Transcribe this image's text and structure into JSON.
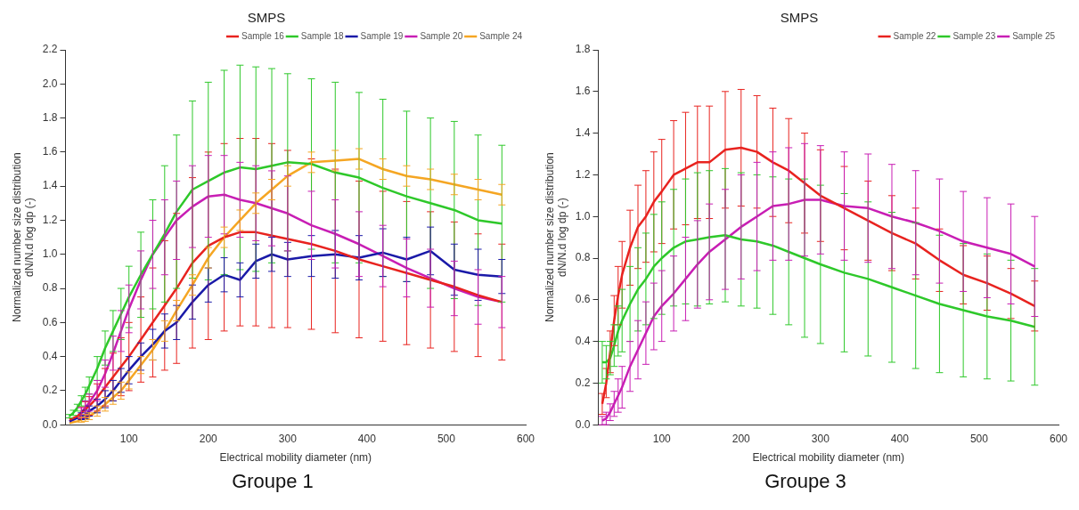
{
  "chart_data": [
    {
      "type": "line",
      "title": "SMPS",
      "xlabel": "Electrical mobility diameter (nm)",
      "ylabel": "Normalized number size distribution\ndN/N.d log dp (-)",
      "annotations": [
        "Groupe 1"
      ],
      "legend": "top right",
      "marker": "none",
      "line_style": "solid",
      "grid": false,
      "x": [
        25,
        30,
        35,
        40,
        45,
        50,
        60,
        70,
        80,
        90,
        100,
        115,
        130,
        145,
        160,
        180,
        200,
        220,
        240,
        260,
        280,
        300,
        330,
        360,
        390,
        420,
        450,
        480,
        510,
        540,
        570
      ],
      "xlim": [
        20,
        600
      ],
      "xticks": [
        100,
        200,
        300,
        400,
        500,
        600
      ],
      "ylim": [
        0,
        2.2
      ],
      "yticks": [
        {
          "value": 0,
          "label": "0.0"
        },
        0.2,
        0.4,
        0.6,
        0.8,
        {
          "value": 1,
          "label": "1.0"
        },
        1.2,
        1.4,
        1.6,
        1.8,
        {
          "value": 2,
          "label": "2.0"
        },
        2.2
      ],
      "series": [
        {
          "name": "Sample 16",
          "color": "#e8231f",
          "values": [
            0.03,
            0.04,
            0.05,
            0.07,
            0.09,
            0.11,
            0.16,
            0.22,
            0.28,
            0.34,
            0.4,
            0.5,
            0.6,
            0.7,
            0.8,
            0.95,
            1.05,
            1.1,
            1.13,
            1.13,
            1.11,
            1.09,
            1.06,
            1.02,
            0.97,
            0.93,
            0.89,
            0.85,
            0.81,
            0.76,
            0.72
          ],
          "errors": [
            null,
            null,
            null,
            0.035,
            0.045,
            0.055,
            0.08,
            0.11,
            0.14,
            0.17,
            0.2,
            0.25,
            0.32,
            0.38,
            0.44,
            0.5,
            0.55,
            0.55,
            0.55,
            0.55,
            0.54,
            0.52,
            0.5,
            0.48,
            0.46,
            0.44,
            0.42,
            0.4,
            0.38,
            0.36,
            0.34
          ]
        },
        {
          "name": "Sample 18",
          "color": "#2ec82a",
          "values": [
            0.05,
            0.07,
            0.1,
            0.14,
            0.18,
            0.23,
            0.33,
            0.45,
            0.55,
            0.65,
            0.75,
            0.88,
            1.0,
            1.12,
            1.25,
            1.38,
            1.43,
            1.48,
            1.51,
            1.5,
            1.52,
            1.54,
            1.53,
            1.48,
            1.45,
            1.39,
            1.34,
            1.3,
            1.26,
            1.2,
            1.18
          ],
          "errors": [
            0.01,
            0.015,
            0.02,
            0.03,
            0.04,
            0.05,
            0.07,
            0.1,
            0.12,
            0.15,
            0.18,
            0.25,
            0.32,
            0.4,
            0.45,
            0.52,
            0.58,
            0.6,
            0.6,
            0.6,
            0.57,
            0.52,
            0.5,
            0.53,
            0.5,
            0.52,
            0.5,
            0.5,
            0.52,
            0.5,
            0.46
          ]
        },
        {
          "name": "Sample 19",
          "color": "#1a1aa8",
          "values": [
            0.02,
            0.03,
            0.04,
            0.05,
            0.06,
            0.08,
            0.11,
            0.15,
            0.2,
            0.26,
            0.32,
            0.4,
            0.47,
            0.55,
            0.6,
            0.72,
            0.82,
            0.88,
            0.85,
            0.96,
            1.0,
            0.97,
            0.99,
            1.0,
            0.98,
            1.01,
            0.97,
            1.02,
            0.91,
            0.88,
            0.87
          ],
          "errors": [
            null,
            null,
            null,
            0.02,
            0.025,
            0.03,
            0.04,
            0.05,
            0.06,
            0.07,
            0.08,
            0.08,
            0.09,
            0.1,
            0.1,
            0.1,
            0.1,
            0.1,
            0.1,
            0.1,
            0.1,
            0.1,
            0.12,
            0.14,
            0.13,
            0.14,
            0.13,
            0.14,
            0.15,
            0.15,
            0.1
          ]
        },
        {
          "name": "Sample 20",
          "color": "#c81eb4",
          "values": [
            0.02,
            0.03,
            0.05,
            0.07,
            0.1,
            0.13,
            0.2,
            0.3,
            0.42,
            0.55,
            0.68,
            0.85,
            1.0,
            1.1,
            1.2,
            1.28,
            1.34,
            1.35,
            1.32,
            1.3,
            1.27,
            1.24,
            1.17,
            1.12,
            1.06,
            0.99,
            0.92,
            0.86,
            0.8,
            0.75,
            0.72
          ],
          "errors": [
            null,
            null,
            null,
            0.03,
            0.04,
            0.05,
            0.06,
            0.08,
            0.1,
            0.12,
            0.14,
            0.17,
            0.2,
            0.22,
            0.23,
            0.24,
            0.24,
            0.23,
            0.22,
            0.22,
            0.22,
            0.22,
            0.2,
            0.2,
            0.19,
            0.18,
            0.17,
            0.17,
            0.16,
            0.16,
            0.15
          ]
        },
        {
          "name": "Sample 24",
          "color": "#f5a623",
          "values": [
            0.01,
            0.015,
            0.02,
            0.03,
            0.04,
            0.05,
            0.08,
            0.12,
            0.16,
            0.2,
            0.26,
            0.35,
            0.44,
            0.55,
            0.67,
            0.82,
            0.98,
            1.1,
            1.2,
            1.3,
            1.38,
            1.46,
            1.54,
            1.55,
            1.56,
            1.5,
            1.46,
            1.44,
            1.41,
            1.38,
            1.35
          ],
          "errors": [
            null,
            null,
            null,
            0.015,
            0.02,
            0.02,
            0.03,
            0.04,
            0.04,
            0.05,
            0.05,
            0.05,
            0.06,
            0.06,
            0.06,
            0.06,
            0.06,
            0.06,
            0.06,
            0.06,
            0.06,
            0.06,
            0.06,
            0.06,
            0.06,
            0.06,
            0.06,
            0.06,
            0.06,
            0.06,
            0.06
          ]
        }
      ]
    },
    {
      "type": "line",
      "title": "SMPS",
      "xlabel": "Electrical mobility diameter (nm)",
      "ylabel": "Normalized number size distribution\ndN/N.d log dp (-)",
      "annotations": [
        "Groupe 3"
      ],
      "legend": "top right",
      "marker": "none",
      "line_style": "solid",
      "grid": false,
      "x": [
        25,
        30,
        35,
        40,
        45,
        50,
        60,
        70,
        80,
        90,
        100,
        115,
        130,
        145,
        160,
        180,
        200,
        220,
        240,
        260,
        280,
        300,
        330,
        360,
        390,
        420,
        450,
        480,
        510,
        540,
        570
      ],
      "xlim": [
        20,
        600
      ],
      "xticks": [
        100,
        200,
        300,
        400,
        500,
        600
      ],
      "ylim": [
        0,
        1.8
      ],
      "yticks": [
        {
          "value": 0,
          "label": "0.0"
        },
        0.2,
        0.4,
        0.6,
        0.8,
        {
          "value": 1,
          "label": "1.0"
        },
        1.2,
        1.4,
        1.6,
        1.8
      ],
      "series": [
        {
          "name": "Sample 22",
          "color": "#e8231f",
          "values": [
            0.1,
            0.2,
            0.35,
            0.5,
            0.62,
            0.72,
            0.85,
            0.95,
            1.0,
            1.07,
            1.12,
            1.2,
            1.23,
            1.26,
            1.26,
            1.32,
            1.33,
            1.31,
            1.26,
            1.22,
            1.16,
            1.1,
            1.04,
            0.98,
            0.92,
            0.87,
            0.79,
            0.72,
            0.68,
            0.63,
            0.57
          ],
          "errors": [
            0.05,
            0.07,
            0.1,
            0.12,
            0.14,
            0.16,
            0.18,
            0.2,
            0.22,
            0.24,
            0.25,
            0.26,
            0.27,
            0.27,
            0.27,
            0.28,
            0.28,
            0.27,
            0.26,
            0.25,
            0.24,
            0.22,
            0.2,
            0.19,
            0.18,
            0.17,
            0.15,
            0.14,
            0.13,
            0.12,
            0.12
          ]
        },
        {
          "name": "Sample 23",
          "color": "#2ec82a",
          "values": [
            0.3,
            0.3,
            0.32,
            0.38,
            0.45,
            0.5,
            0.58,
            0.65,
            0.7,
            0.76,
            0.8,
            0.85,
            0.88,
            0.89,
            0.9,
            0.91,
            0.89,
            0.88,
            0.86,
            0.83,
            0.8,
            0.77,
            0.73,
            0.7,
            0.66,
            0.62,
            0.58,
            0.55,
            0.52,
            0.5,
            0.47
          ],
          "errors": [
            0.1,
            0.08,
            0.08,
            0.1,
            0.12,
            0.15,
            0.18,
            0.2,
            0.22,
            0.25,
            0.27,
            0.28,
            0.3,
            0.32,
            0.32,
            0.32,
            0.32,
            0.32,
            0.33,
            0.35,
            0.38,
            0.38,
            0.38,
            0.37,
            0.36,
            0.35,
            0.33,
            0.32,
            0.3,
            0.29,
            0.28
          ]
        },
        {
          "name": "Sample 25",
          "color": "#c81eb4",
          "values": [
            0.02,
            0.03,
            0.06,
            0.1,
            0.14,
            0.18,
            0.28,
            0.36,
            0.44,
            0.52,
            0.57,
            0.63,
            0.7,
            0.77,
            0.83,
            0.89,
            0.95,
            1.0,
            1.05,
            1.06,
            1.08,
            1.08,
            1.05,
            1.04,
            1.0,
            0.97,
            0.93,
            0.88,
            0.85,
            0.82,
            0.76
          ],
          "errors": [
            0.02,
            0.03,
            0.04,
            0.06,
            0.08,
            0.1,
            0.12,
            0.14,
            0.15,
            0.16,
            0.17,
            0.18,
            0.2,
            0.21,
            0.23,
            0.24,
            0.25,
            0.26,
            0.26,
            0.27,
            0.27,
            0.26,
            0.26,
            0.26,
            0.25,
            0.25,
            0.25,
            0.24,
            0.24,
            0.24,
            0.24
          ]
        }
      ]
    }
  ]
}
